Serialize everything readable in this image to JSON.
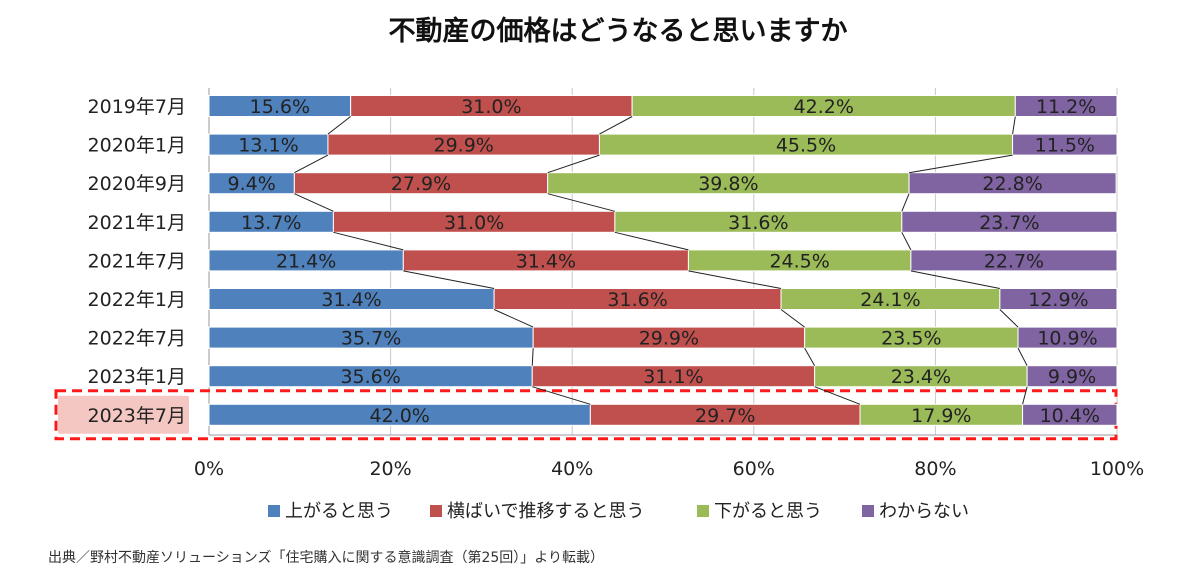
{
  "chart_data": {
    "type": "bar",
    "orientation": "horizontal",
    "stacked": true,
    "title": "不動産の価格はどうなると思いますか",
    "categories": [
      "2019年7月",
      "2020年1月",
      "2020年9月",
      "2021年1月",
      "2021年7月",
      "2022年1月",
      "2022年7月",
      "2023年1月",
      "2023年7月"
    ],
    "highlight_category": "2023年7月",
    "series": [
      {
        "name": "上がると思う",
        "color": "#4f81bd",
        "values": [
          15.6,
          13.1,
          9.4,
          13.7,
          21.4,
          31.4,
          35.7,
          35.6,
          42.0
        ]
      },
      {
        "name": "横ばいで推移すると思う",
        "color": "#c0504d",
        "values": [
          31.0,
          29.9,
          27.9,
          31.0,
          31.4,
          31.6,
          29.9,
          31.1,
          29.7
        ]
      },
      {
        "name": "下がると思う",
        "color": "#9bbb59",
        "values": [
          42.2,
          45.5,
          39.8,
          31.6,
          24.5,
          24.1,
          23.5,
          23.4,
          17.9
        ]
      },
      {
        "name": "わからない",
        "color": "#8064a2",
        "values": [
          11.2,
          11.5,
          22.8,
          23.7,
          22.7,
          12.9,
          10.9,
          9.9,
          10.4
        ]
      }
    ],
    "xlim": [
      0,
      100
    ],
    "x_ticks": [
      "0%",
      "20%",
      "40%",
      "60%",
      "80%",
      "100%"
    ],
    "grid": true,
    "legend_position": "bottom",
    "source": "出典／野村不動産ソリューションズ「住宅購入に関する意識調査（第25回）」より転載）"
  }
}
